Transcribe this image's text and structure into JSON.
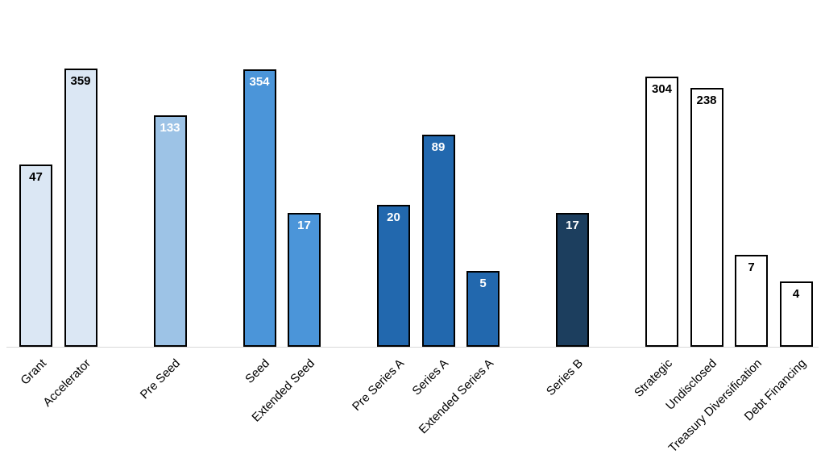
{
  "chart_data": {
    "type": "bar",
    "title": "",
    "xlabel": "",
    "ylabel": "",
    "legend": false,
    "grid": false,
    "y_axis": {
      "visible": false,
      "scale": "log"
    },
    "categories": [
      "Grant",
      "Accelerator",
      "Pre Seed",
      "Seed",
      "Extended Seed",
      "Pre Series A",
      "Series A",
      "Extended Series A",
      "Series B",
      "Strategic",
      "Undisclosed",
      "Treasury Diversification",
      "Debt Financing"
    ],
    "values": [
      47,
      359,
      133,
      354,
      17,
      20,
      89,
      5,
      17,
      304,
      238,
      7,
      4
    ],
    "groups": [
      [
        "Grant",
        "Accelerator"
      ],
      [
        "Pre Seed"
      ],
      [
        "Seed",
        "Extended Seed"
      ],
      [
        "Pre Series A",
        "Series A",
        "Extended Series A"
      ],
      [
        "Series B"
      ],
      [
        "Strategic",
        "Undisclosed",
        "Treasury Diversification",
        "Debt Financing"
      ]
    ],
    "bars": [
      {
        "label": "Grant",
        "value": 47,
        "slot": 0,
        "fill": "#dbe7f4",
        "border": "#000000",
        "value_color": "#000000"
      },
      {
        "label": "Accelerator",
        "value": 359,
        "slot": 1,
        "fill": "#dbe7f4",
        "border": "#000000",
        "value_color": "#000000"
      },
      {
        "label": "Pre Seed",
        "value": 133,
        "slot": 3,
        "fill": "#9dc3e6",
        "border": "#000000",
        "value_color": "#ffffff"
      },
      {
        "label": "Seed",
        "value": 354,
        "slot": 5,
        "fill": "#4b95d9",
        "border": "#000000",
        "value_color": "#ffffff"
      },
      {
        "label": "Extended Seed",
        "value": 17,
        "slot": 6,
        "fill": "#4b95d9",
        "border": "#000000",
        "value_color": "#ffffff"
      },
      {
        "label": "Pre Series A",
        "value": 20,
        "slot": 8,
        "fill": "#2268ae",
        "border": "#000000",
        "value_color": "#ffffff"
      },
      {
        "label": "Series A",
        "value": 89,
        "slot": 9,
        "fill": "#2268ae",
        "border": "#000000",
        "value_color": "#ffffff"
      },
      {
        "label": "Extended Series A",
        "value": 5,
        "slot": 10,
        "fill": "#2268ae",
        "border": "#000000",
        "value_color": "#ffffff"
      },
      {
        "label": "Series B",
        "value": 17,
        "slot": 12,
        "fill": "#1c3e5e",
        "border": "#000000",
        "value_color": "#ffffff"
      },
      {
        "label": "Strategic",
        "value": 304,
        "slot": 14,
        "fill": "#ffffff",
        "border": "#000000",
        "value_color": "#000000"
      },
      {
        "label": "Undisclosed",
        "value": 238,
        "slot": 15,
        "fill": "#ffffff",
        "border": "#000000",
        "value_color": "#000000"
      },
      {
        "label": "Treasury Diversification",
        "value": 7,
        "slot": 16,
        "fill": "#ffffff",
        "border": "#000000",
        "value_color": "#000000"
      },
      {
        "label": "Debt Financing",
        "value": 4,
        "slot": 17,
        "fill": "#ffffff",
        "border": "#000000",
        "value_color": "#000000"
      }
    ]
  }
}
